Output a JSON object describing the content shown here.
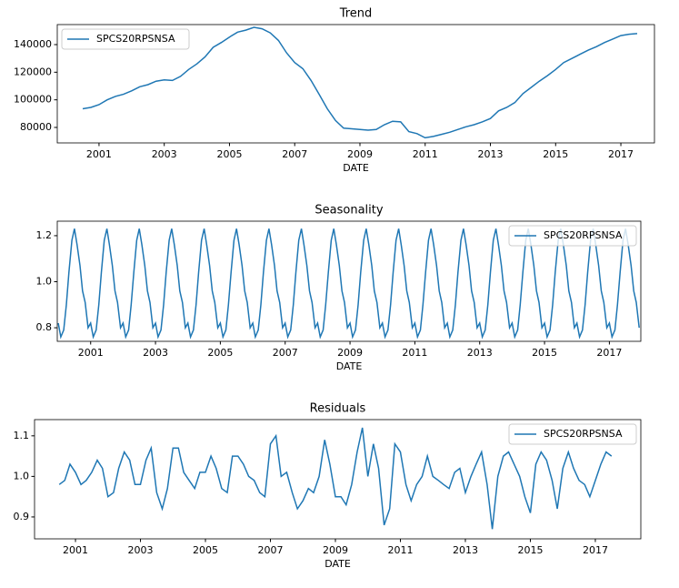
{
  "chart_data": [
    {
      "type": "line",
      "title": "Trend",
      "xlabel": "DATE",
      "legend": "upper left",
      "xlim": [
        1999.72,
        2018.03
      ],
      "xticks": [
        2001,
        2003,
        2005,
        2007,
        2009,
        2011,
        2013,
        2015,
        2017
      ],
      "ylim": [
        68800,
        154500
      ],
      "yticks": [
        80000,
        100000,
        120000,
        140000
      ],
      "x": [
        2000.5,
        2000.75,
        2001,
        2001.25,
        2001.5,
        2001.75,
        2002,
        2002.25,
        2002.5,
        2002.75,
        2003,
        2003.25,
        2003.5,
        2003.75,
        2004,
        2004.25,
        2004.5,
        2004.75,
        2005,
        2005.25,
        2005.5,
        2005.75,
        2006,
        2006.25,
        2006.5,
        2006.75,
        2007,
        2007.25,
        2007.5,
        2007.75,
        2008,
        2008.25,
        2008.5,
        2008.75,
        2009,
        2009.25,
        2009.5,
        2009.75,
        2010,
        2010.25,
        2010.5,
        2010.75,
        2011,
        2011.25,
        2011.5,
        2011.75,
        2012,
        2012.25,
        2012.5,
        2012.75,
        2013,
        2013.25,
        2013.5,
        2013.75,
        2014,
        2014.25,
        2014.5,
        2014.75,
        2015,
        2015.25,
        2015.5,
        2015.75,
        2016,
        2016.25,
        2016.5,
        2016.75,
        2017,
        2017.25,
        2017.5
      ],
      "series": [
        {
          "name": "SPCS20RPSNSA",
          "color": "#1f77b4",
          "values": [
            93500,
            94500,
            96500,
            100000,
            102500,
            104000,
            106500,
            109500,
            111000,
            113500,
            114500,
            114000,
            117000,
            122000,
            126000,
            131000,
            138000,
            141500,
            145500,
            149000,
            150500,
            152500,
            151500,
            148500,
            143000,
            134000,
            127000,
            122500,
            114000,
            104000,
            93500,
            85000,
            79500,
            79000,
            78500,
            78000,
            78500,
            82000,
            84500,
            84000,
            77000,
            75500,
            72500,
            73500,
            75000,
            76500,
            78500,
            80500,
            82000,
            84000,
            86500,
            92000,
            94500,
            98000,
            104500,
            109000,
            113500,
            117500,
            122000,
            127000,
            130000,
            133000,
            136000,
            138500,
            141500,
            144000,
            146500,
            147500,
            148000
          ]
        }
      ]
    },
    {
      "type": "line",
      "title": "Seasonality",
      "xlabel": "DATE",
      "legend": "upper right",
      "xlim": [
        1999.97,
        2017.97
      ],
      "xticks": [
        2001,
        2003,
        2005,
        2007,
        2009,
        2011,
        2013,
        2015,
        2017
      ],
      "ylim": [
        0.741,
        1.263
      ],
      "yticks": [
        0.8,
        {
          "value": 1,
          "label": "1.0"
        },
        1.2
      ],
      "x": [
        2000,
        2000.08,
        2000.17,
        2000.25,
        2000.33,
        2000.42,
        2000.5,
        2000.58,
        2000.67,
        2000.75,
        2000.83,
        2000.92,
        2001,
        2001.08,
        2001.17,
        2001.25,
        2001.33,
        2001.42,
        2001.5,
        2001.58,
        2001.67,
        2001.75,
        2001.83,
        2001.92,
        2002,
        2002.08,
        2002.17,
        2002.25,
        2002.33,
        2002.42,
        2002.5,
        2002.58,
        2002.67,
        2002.75,
        2002.83,
        2002.92,
        2003,
        2003.08,
        2003.17,
        2003.25,
        2003.33,
        2003.42,
        2003.5,
        2003.58,
        2003.67,
        2003.75,
        2003.83,
        2003.92,
        2004,
        2004.08,
        2004.17,
        2004.25,
        2004.33,
        2004.42,
        2004.5,
        2004.58,
        2004.67,
        2004.75,
        2004.83,
        2004.92,
        2005,
        2005.08,
        2005.17,
        2005.25,
        2005.33,
        2005.42,
        2005.5,
        2005.58,
        2005.67,
        2005.75,
        2005.83,
        2005.92,
        2006,
        2006.08,
        2006.17,
        2006.25,
        2006.33,
        2006.42,
        2006.5,
        2006.58,
        2006.67,
        2006.75,
        2006.83,
        2006.92,
        2007,
        2007.08,
        2007.17,
        2007.25,
        2007.33,
        2007.42,
        2007.5,
        2007.58,
        2007.67,
        2007.75,
        2007.83,
        2007.92,
        2008,
        2008.08,
        2008.17,
        2008.25,
        2008.33,
        2008.42,
        2008.5,
        2008.58,
        2008.67,
        2008.75,
        2008.83,
        2008.92,
        2009,
        2009.08,
        2009.17,
        2009.25,
        2009.33,
        2009.42,
        2009.5,
        2009.58,
        2009.67,
        2009.75,
        2009.83,
        2009.92,
        2010,
        2010.08,
        2010.17,
        2010.25,
        2010.33,
        2010.42,
        2010.5,
        2010.58,
        2010.67,
        2010.75,
        2010.83,
        2010.92,
        2011,
        2011.08,
        2011.17,
        2011.25,
        2011.33,
        2011.42,
        2011.5,
        2011.58,
        2011.67,
        2011.75,
        2011.83,
        2011.92,
        2012,
        2012.08,
        2012.17,
        2012.25,
        2012.33,
        2012.42,
        2012.5,
        2012.58,
        2012.67,
        2012.75,
        2012.83,
        2012.92,
        2013,
        2013.08,
        2013.17,
        2013.25,
        2013.33,
        2013.42,
        2013.5,
        2013.58,
        2013.67,
        2013.75,
        2013.83,
        2013.92,
        2014,
        2014.08,
        2014.17,
        2014.25,
        2014.33,
        2014.42,
        2014.5,
        2014.58,
        2014.67,
        2014.75,
        2014.83,
        2014.92,
        2015,
        2015.08,
        2015.17,
        2015.25,
        2015.33,
        2015.42,
        2015.5,
        2015.58,
        2015.67,
        2015.75,
        2015.83,
        2015.92,
        2016,
        2016.08,
        2016.17,
        2016.25,
        2016.33,
        2016.42,
        2016.5,
        2016.58,
        2016.67,
        2016.75,
        2016.83,
        2016.92,
        2017,
        2017.08,
        2017.17,
        2017.25,
        2017.33,
        2017.42,
        2017.5,
        2017.58,
        2017.67,
        2017.75,
        2017.83,
        2017.92
      ],
      "series": [
        {
          "name": "SPCS20RPSNSA",
          "color": "#1f77b4",
          "values": [
            0.82,
            0.76,
            0.79,
            0.9,
            1.04,
            1.18,
            1.23,
            1.16,
            1.07,
            0.96,
            0.91,
            0.8,
            0.82,
            0.76,
            0.79,
            0.9,
            1.04,
            1.18,
            1.23,
            1.16,
            1.07,
            0.96,
            0.91,
            0.8,
            0.82,
            0.76,
            0.79,
            0.9,
            1.04,
            1.18,
            1.23,
            1.16,
            1.07,
            0.96,
            0.91,
            0.8,
            0.82,
            0.76,
            0.79,
            0.9,
            1.04,
            1.18,
            1.23,
            1.16,
            1.07,
            0.96,
            0.91,
            0.8,
            0.82,
            0.76,
            0.79,
            0.9,
            1.04,
            1.18,
            1.23,
            1.16,
            1.07,
            0.96,
            0.91,
            0.8,
            0.82,
            0.76,
            0.79,
            0.9,
            1.04,
            1.18,
            1.23,
            1.16,
            1.07,
            0.96,
            0.91,
            0.8,
            0.82,
            0.76,
            0.79,
            0.9,
            1.04,
            1.18,
            1.23,
            1.16,
            1.07,
            0.96,
            0.91,
            0.8,
            0.82,
            0.76,
            0.79,
            0.9,
            1.04,
            1.18,
            1.23,
            1.16,
            1.07,
            0.96,
            0.91,
            0.8,
            0.82,
            0.76,
            0.79,
            0.9,
            1.04,
            1.18,
            1.23,
            1.16,
            1.07,
            0.96,
            0.91,
            0.8,
            0.82,
            0.76,
            0.79,
            0.9,
            1.04,
            1.18,
            1.23,
            1.16,
            1.07,
            0.96,
            0.91,
            0.8,
            0.82,
            0.76,
            0.79,
            0.9,
            1.04,
            1.18,
            1.23,
            1.16,
            1.07,
            0.96,
            0.91,
            0.8,
            0.82,
            0.76,
            0.79,
            0.9,
            1.04,
            1.18,
            1.23,
            1.16,
            1.07,
            0.96,
            0.91,
            0.8,
            0.82,
            0.76,
            0.79,
            0.9,
            1.04,
            1.18,
            1.23,
            1.16,
            1.07,
            0.96,
            0.91,
            0.8,
            0.82,
            0.76,
            0.79,
            0.9,
            1.04,
            1.18,
            1.23,
            1.16,
            1.07,
            0.96,
            0.91,
            0.8,
            0.82,
            0.76,
            0.79,
            0.9,
            1.04,
            1.18,
            1.23,
            1.16,
            1.07,
            0.96,
            0.91,
            0.8,
            0.82,
            0.76,
            0.79,
            0.9,
            1.04,
            1.18,
            1.23,
            1.16,
            1.07,
            0.96,
            0.91,
            0.8,
            0.82,
            0.76,
            0.79,
            0.9,
            1.04,
            1.18,
            1.23,
            1.16,
            1.07,
            0.96,
            0.91,
            0.8,
            0.82,
            0.76,
            0.79,
            0.9,
            1.04,
            1.18,
            1.23,
            1.16,
            1.07,
            0.96,
            0.91,
            0.8
          ]
        }
      ]
    },
    {
      "type": "line",
      "title": "Residuals",
      "xlabel": "DATE",
      "legend": "upper right",
      "xlim": [
        1999.74,
        2018.4
      ],
      "xticks": [
        2001,
        2003,
        2005,
        2007,
        2009,
        2011,
        2013,
        2015,
        2017
      ],
      "ylim": [
        0.846,
        1.14
      ],
      "yticks": [
        0.9,
        {
          "value": 1,
          "label": "1.0"
        },
        1.1
      ],
      "x": [
        2000.5,
        2000.67,
        2000.83,
        2001,
        2001.17,
        2001.33,
        2001.5,
        2001.67,
        2001.83,
        2002,
        2002.17,
        2002.33,
        2002.5,
        2002.67,
        2002.83,
        2003,
        2003.17,
        2003.33,
        2003.5,
        2003.67,
        2003.83,
        2004,
        2004.17,
        2004.33,
        2004.5,
        2004.67,
        2004.83,
        2005,
        2005.17,
        2005.33,
        2005.5,
        2005.67,
        2005.83,
        2006,
        2006.17,
        2006.33,
        2006.5,
        2006.67,
        2006.83,
        2007,
        2007.17,
        2007.33,
        2007.5,
        2007.67,
        2007.83,
        2008,
        2008.17,
        2008.33,
        2008.5,
        2008.67,
        2008.83,
        2009,
        2009.17,
        2009.33,
        2009.5,
        2009.67,
        2009.83,
        2010,
        2010.17,
        2010.33,
        2010.5,
        2010.67,
        2010.83,
        2011,
        2011.17,
        2011.33,
        2011.5,
        2011.67,
        2011.83,
        2012,
        2012.17,
        2012.33,
        2012.5,
        2012.67,
        2012.83,
        2013,
        2013.17,
        2013.33,
        2013.5,
        2013.67,
        2013.83,
        2014,
        2014.17,
        2014.33,
        2014.5,
        2014.67,
        2014.83,
        2015,
        2015.17,
        2015.33,
        2015.5,
        2015.67,
        2015.83,
        2016,
        2016.17,
        2016.33,
        2016.5,
        2016.67,
        2016.83,
        2017,
        2017.17,
        2017.33,
        2017.5
      ],
      "series": [
        {
          "name": "SPCS20RPSNSA",
          "color": "#1f77b4",
          "values": [
            0.98,
            0.99,
            1.03,
            1.01,
            0.98,
            0.99,
            1.01,
            1.04,
            1.02,
            0.95,
            0.96,
            1.02,
            1.06,
            1.04,
            0.98,
            0.98,
            1.04,
            1.07,
            0.96,
            0.92,
            0.97,
            1.07,
            1.07,
            1.01,
            0.99,
            0.97,
            1.01,
            1.01,
            1.05,
            1.02,
            0.97,
            0.96,
            1.05,
            1.05,
            1.03,
            1.0,
            0.99,
            0.96,
            0.95,
            1.08,
            1.1,
            1.0,
            1.01,
            0.96,
            0.92,
            0.94,
            0.97,
            0.96,
            1.0,
            1.09,
            1.03,
            0.95,
            0.95,
            0.93,
            0.98,
            1.06,
            1.12,
            1.0,
            1.08,
            1.02,
            0.88,
            0.92,
            1.08,
            1.06,
            0.98,
            0.94,
            0.98,
            1.0,
            1.05,
            1.0,
            0.99,
            0.98,
            0.97,
            1.01,
            1.02,
            0.96,
            1.0,
            1.03,
            1.06,
            0.98,
            0.87,
            1.0,
            1.05,
            1.06,
            1.03,
            1.0,
            0.95,
            0.91,
            1.03,
            1.06,
            1.04,
            0.99,
            0.92,
            1.02,
            1.06,
            1.02,
            0.99,
            0.98,
            0.95,
            0.99,
            1.03,
            1.06,
            1.05
          ]
        }
      ]
    }
  ]
}
